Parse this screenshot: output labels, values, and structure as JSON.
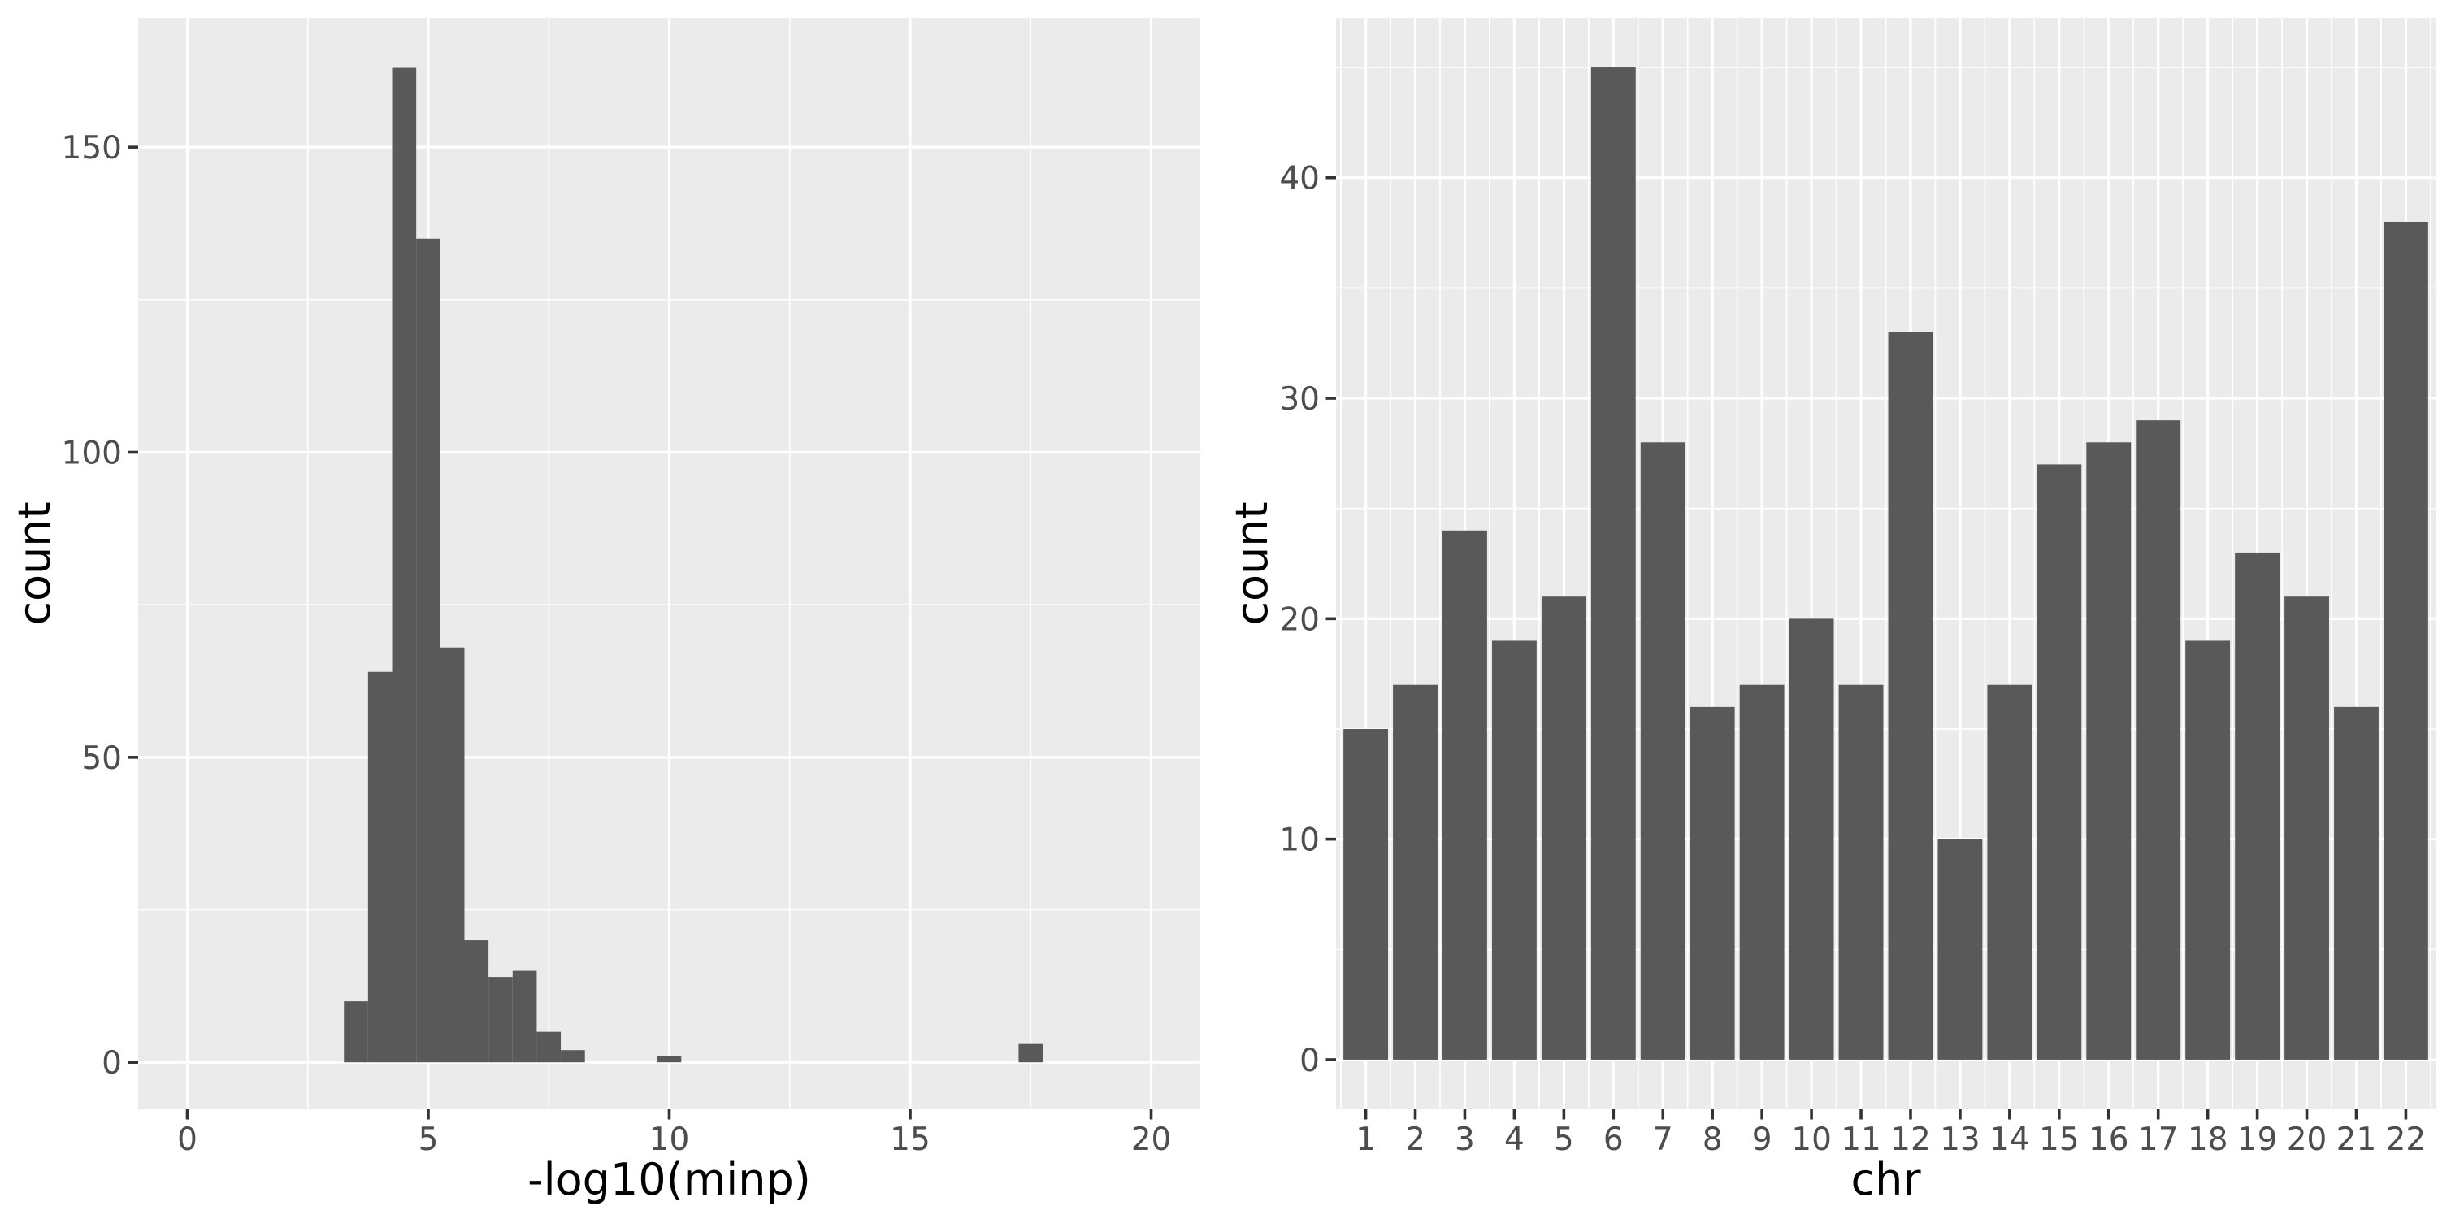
{
  "figure": {
    "background": "#FFFFFF",
    "panel_background": "#EBEBEB",
    "grid_color": "#FFFFFF",
    "bar_fill": "#595959",
    "tick_mark_color": "#333333",
    "tick_label_color": "#4D4D4D",
    "axis_title_color": "#000000"
  },
  "chart_data": [
    {
      "type": "bar",
      "subtype": "histogram",
      "title": "",
      "xlabel": "-log10(minp)",
      "ylabel": "count",
      "x_ticks": [
        0,
        5,
        10,
        15,
        20
      ],
      "x_tick_labels": [
        "0",
        "5",
        "10",
        "15",
        "20"
      ],
      "x_minor": [
        2.5,
        7.5,
        12.5,
        17.5
      ],
      "y_ticks": [
        0,
        50,
        100,
        150
      ],
      "y_tick_labels": [
        "0",
        "50",
        "100",
        "150"
      ],
      "y_minor": [
        25,
        75,
        125
      ],
      "xlim": [
        -1.02,
        21.02
      ],
      "ylim": [
        -7.7,
        171.2
      ],
      "grid": true,
      "legend": "none",
      "binwidth": 0.5,
      "bins": [
        {
          "x0": 3.25,
          "x1": 3.75,
          "count": 10
        },
        {
          "x0": 3.75,
          "x1": 4.25,
          "count": 64
        },
        {
          "x0": 4.25,
          "x1": 4.75,
          "count": 163
        },
        {
          "x0": 4.75,
          "x1": 5.25,
          "count": 135
        },
        {
          "x0": 5.25,
          "x1": 5.75,
          "count": 68
        },
        {
          "x0": 5.75,
          "x1": 6.25,
          "count": 20
        },
        {
          "x0": 6.25,
          "x1": 6.75,
          "count": 14
        },
        {
          "x0": 6.75,
          "x1": 7.25,
          "count": 15
        },
        {
          "x0": 7.25,
          "x1": 7.75,
          "count": 5
        },
        {
          "x0": 7.75,
          "x1": 8.25,
          "count": 2
        },
        {
          "x0": 9.75,
          "x1": 10.25,
          "count": 1
        },
        {
          "x0": 17.25,
          "x1": 17.75,
          "count": 3
        }
      ]
    },
    {
      "type": "bar",
      "subtype": "category-bar",
      "title": "",
      "xlabel": "chr",
      "ylabel": "count",
      "categories": [
        "1",
        "2",
        "3",
        "4",
        "5",
        "6",
        "7",
        "8",
        "9",
        "10",
        "11",
        "12",
        "13",
        "14",
        "15",
        "16",
        "17",
        "18",
        "19",
        "20",
        "21",
        "22"
      ],
      "values": [
        15,
        17,
        24,
        19,
        21,
        45,
        28,
        16,
        17,
        20,
        17,
        33,
        10,
        17,
        27,
        28,
        29,
        19,
        23,
        21,
        16,
        38
      ],
      "y_ticks": [
        0,
        10,
        20,
        30,
        40
      ],
      "y_tick_labels": [
        "0",
        "10",
        "20",
        "30",
        "40"
      ],
      "y_minor": [
        5,
        15,
        25,
        35,
        45
      ],
      "xlim": [
        0.4,
        22.6
      ],
      "ylim": [
        -2.25,
        47.25
      ],
      "grid": true,
      "legend": "none",
      "bar_width": 0.9
    }
  ]
}
